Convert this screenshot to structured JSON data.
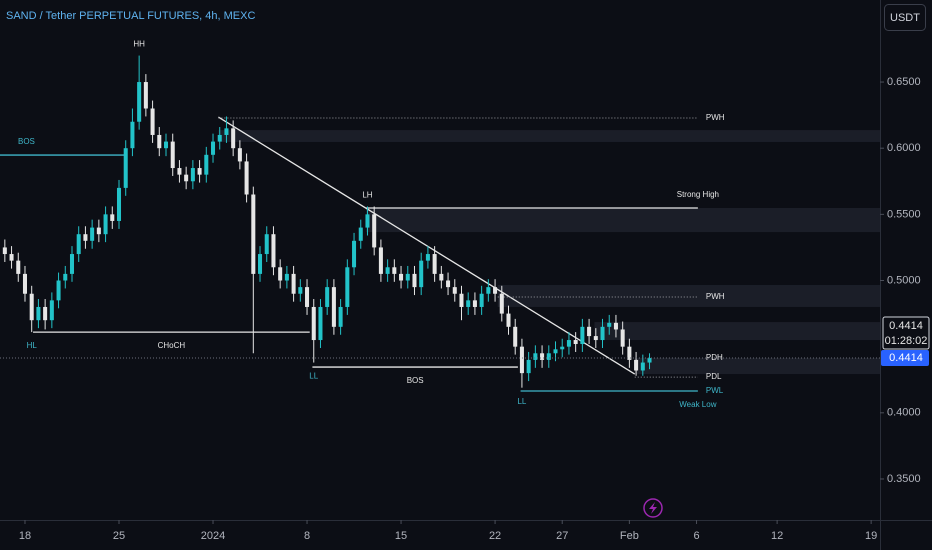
{
  "chart_data": {
    "type": "candlestick",
    "title": "SAND / Tether PERPETUAL FUTURES, 4h, MEXC",
    "currency": "USDT",
    "countdown": "01:28:02",
    "up_color": "#22c3c9",
    "down_color": "#e6e6e6",
    "x": [
      -1.5,
      -1,
      -0.5,
      0,
      0.5,
      1,
      1.5,
      2,
      2.5,
      3,
      3.5,
      4,
      4.5,
      5,
      5.5,
      6,
      6.5,
      7,
      7.5,
      8,
      8.5,
      9,
      9.5,
      10,
      10.5,
      11,
      11.5,
      12,
      12.5,
      13,
      13.5,
      14,
      14.5,
      15,
      15.5,
      16,
      16.5,
      17,
      17.5,
      18,
      18.5,
      19,
      19.5,
      20,
      20.5,
      21,
      21.5,
      22,
      22.5,
      23,
      23.5,
      24,
      24.5,
      25,
      25.5,
      26,
      26.5,
      27,
      27.5,
      28,
      28.5,
      29,
      29.5,
      30,
      30.5,
      31,
      31.5,
      32,
      32.5,
      33,
      33.5,
      34,
      34.5,
      35,
      35.5,
      36,
      36.5,
      37,
      37.5,
      38,
      38.5,
      39,
      39.5,
      40,
      40.5,
      41,
      41.5,
      42,
      42.5,
      43,
      43.5,
      44,
      44.5,
      45,
      45.5,
      46,
      46.5
    ],
    "open": [
      0.525,
      0.52,
      0.515,
      0.505,
      0.49,
      0.47,
      0.48,
      0.47,
      0.485,
      0.5,
      0.505,
      0.52,
      0.535,
      0.53,
      0.54,
      0.535,
      0.55,
      0.545,
      0.57,
      0.6,
      0.62,
      0.65,
      0.63,
      0.61,
      0.6,
      0.605,
      0.585,
      0.58,
      0.575,
      0.585,
      0.58,
      0.595,
      0.605,
      0.61,
      0.615,
      0.6,
      0.59,
      0.565,
      0.505,
      0.52,
      0.535,
      0.51,
      0.5,
      0.505,
      0.49,
      0.495,
      0.48,
      0.455,
      0.48,
      0.495,
      0.465,
      0.48,
      0.51,
      0.53,
      0.54,
      0.55,
      0.525,
      0.505,
      0.51,
      0.505,
      0.5,
      0.505,
      0.495,
      0.515,
      0.52,
      0.505,
      0.5,
      0.495,
      0.49,
      0.48,
      0.485,
      0.48,
      0.49,
      0.495,
      0.49,
      0.475,
      0.465,
      0.45,
      0.43,
      0.44,
      0.445,
      0.44,
      0.445,
      0.448,
      0.45,
      0.455,
      0.452,
      0.465,
      0.458,
      0.455,
      0.465,
      0.468,
      0.463,
      0.45,
      0.44,
      0.432,
      0.438
    ],
    "high": [
      0.531,
      0.526,
      0.521,
      0.511,
      0.496,
      0.486,
      0.486,
      0.491,
      0.506,
      0.511,
      0.526,
      0.541,
      0.541,
      0.546,
      0.546,
      0.556,
      0.556,
      0.576,
      0.606,
      0.63,
      0.67,
      0.656,
      0.636,
      0.616,
      0.611,
      0.611,
      0.591,
      0.586,
      0.591,
      0.591,
      0.601,
      0.611,
      0.616,
      0.624,
      0.621,
      0.606,
      0.596,
      0.571,
      0.526,
      0.541,
      0.541,
      0.516,
      0.511,
      0.511,
      0.501,
      0.501,
      0.486,
      0.486,
      0.501,
      0.501,
      0.486,
      0.516,
      0.536,
      0.546,
      0.556,
      0.556,
      0.531,
      0.516,
      0.516,
      0.511,
      0.511,
      0.511,
      0.521,
      0.526,
      0.526,
      0.511,
      0.506,
      0.501,
      0.496,
      0.491,
      0.491,
      0.496,
      0.501,
      0.501,
      0.496,
      0.481,
      0.471,
      0.456,
      0.446,
      0.451,
      0.451,
      0.451,
      0.454,
      0.456,
      0.461,
      0.461,
      0.471,
      0.471,
      0.464,
      0.471,
      0.474,
      0.474,
      0.469,
      0.456,
      0.446,
      0.444,
      0.445
    ],
    "low": [
      0.514,
      0.509,
      0.499,
      0.484,
      0.461,
      0.464,
      0.463,
      0.464,
      0.479,
      0.494,
      0.499,
      0.514,
      0.524,
      0.524,
      0.529,
      0.529,
      0.539,
      0.539,
      0.564,
      0.594,
      0.614,
      0.624,
      0.604,
      0.594,
      0.594,
      0.579,
      0.574,
      0.569,
      0.569,
      0.574,
      0.574,
      0.589,
      0.599,
      0.604,
      0.594,
      0.584,
      0.559,
      0.445,
      0.499,
      0.514,
      0.504,
      0.494,
      0.494,
      0.484,
      0.484,
      0.474,
      0.438,
      0.449,
      0.474,
      0.459,
      0.459,
      0.474,
      0.504,
      0.524,
      0.534,
      0.519,
      0.499,
      0.499,
      0.499,
      0.494,
      0.494,
      0.489,
      0.489,
      0.509,
      0.499,
      0.494,
      0.489,
      0.484,
      0.47,
      0.474,
      0.474,
      0.474,
      0.484,
      0.484,
      0.469,
      0.459,
      0.444,
      0.419,
      0.424,
      0.434,
      0.434,
      0.434,
      0.439,
      0.442,
      0.444,
      0.446,
      0.446,
      0.452,
      0.449,
      0.449,
      0.459,
      0.457,
      0.444,
      0.434,
      0.428,
      0.428,
      0.433
    ],
    "close": [
      0.52,
      0.515,
      0.505,
      0.49,
      0.47,
      0.48,
      0.47,
      0.485,
      0.5,
      0.505,
      0.52,
      0.535,
      0.53,
      0.54,
      0.535,
      0.55,
      0.545,
      0.57,
      0.6,
      0.62,
      0.65,
      0.63,
      0.61,
      0.6,
      0.605,
      0.585,
      0.58,
      0.575,
      0.585,
      0.58,
      0.595,
      0.605,
      0.61,
      0.615,
      0.6,
      0.59,
      0.565,
      0.505,
      0.52,
      0.535,
      0.51,
      0.5,
      0.505,
      0.49,
      0.495,
      0.48,
      0.455,
      0.48,
      0.495,
      0.465,
      0.48,
      0.51,
      0.53,
      0.54,
      0.55,
      0.525,
      0.505,
      0.51,
      0.505,
      0.5,
      0.505,
      0.495,
      0.515,
      0.52,
      0.505,
      0.5,
      0.495,
      0.49,
      0.48,
      0.485,
      0.48,
      0.49,
      0.495,
      0.49,
      0.475,
      0.465,
      0.45,
      0.43,
      0.44,
      0.445,
      0.44,
      0.445,
      0.448,
      0.45,
      0.455,
      0.452,
      0.465,
      0.458,
      0.455,
      0.465,
      0.468,
      0.463,
      0.45,
      0.44,
      0.432,
      0.438,
      0.4414
    ],
    "xlim": [
      -1.86,
      63.66
    ],
    "ylim": [
      0.319,
      0.712
    ],
    "xticks": [
      {
        "value": 0,
        "label": "18"
      },
      {
        "value": 7,
        "label": "25"
      },
      {
        "value": 14,
        "label": "2024"
      },
      {
        "value": 21,
        "label": "8"
      },
      {
        "value": 28,
        "label": "15"
      },
      {
        "value": 35,
        "label": "22"
      },
      {
        "value": 40,
        "label": "27"
      },
      {
        "value": 45,
        "label": "Feb"
      },
      {
        "value": 50,
        "label": "6"
      },
      {
        "value": 56,
        "label": "12"
      },
      {
        "value": 63,
        "label": "19"
      }
    ],
    "yticks": [
      {
        "value": 0.65,
        "label": "0.6500"
      },
      {
        "value": 0.6,
        "label": "0.6000"
      },
      {
        "value": 0.55,
        "label": "0.5500"
      },
      {
        "value": 0.5,
        "label": "0.5000"
      },
      {
        "value": 0.4,
        "label": "0.4000"
      },
      {
        "value": 0.35,
        "label": "0.3500"
      }
    ],
    "zones": [
      {
        "y": [
          0.6047,
          0.6137
        ],
        "x": 14.4
      },
      {
        "y": [
          0.5366,
          0.5548
        ],
        "x": 25.4
      },
      {
        "y": [
          0.48,
          0.4966
        ],
        "x": 35.2
      },
      {
        "y": [
          0.455,
          0.4686
        ],
        "x": 42.4
      },
      {
        "y": [
          0.4293,
          0.4414
        ],
        "x": 45.4
      }
    ],
    "lines": [
      {
        "x": [
          -1.86,
          7.45
        ],
        "y": 0.5948,
        "color": "#3fb6c9",
        "style": "solid",
        "labels": [
          {
            "text": "BOS",
            "at": "start",
            "side": "above"
          }
        ]
      },
      {
        "x": [
          0.6,
          21.2
        ],
        "y": 0.461,
        "color": "#e6e6e6",
        "style": "solid",
        "labels": [
          {
            "text": "CHoCH",
            "at": "mid",
            "side": "below"
          }
        ]
      },
      {
        "x": [
          14.4,
          45.4
        ],
        "y": [
          0.6235,
          0.4293
        ],
        "color": "#e6e6e6",
        "style": "solid",
        "labels": []
      },
      {
        "x": [
          25.4,
          50.1
        ],
        "y": 0.5548,
        "color": "#e6e6e6",
        "style": "solid",
        "labels": [
          {
            "text": "Strong High",
            "at": "end",
            "side": "above"
          }
        ]
      },
      {
        "x": [
          21.4,
          36.7
        ],
        "y": 0.4346,
        "color": "#e6e6e6",
        "style": "solid",
        "labels": [
          {
            "text": "BOS",
            "at": "mid",
            "side": "below"
          }
        ]
      },
      {
        "x": [
          14.4,
          50.1
        ],
        "y": 0.6228,
        "color": "#9a9ca3",
        "style": "dotted",
        "labels": [
          {
            "text": "PWH",
            "at": "end",
            "side": "right"
          }
        ]
      },
      {
        "x": [
          35.2,
          50.1
        ],
        "y": 0.4875,
        "color": "#9a9ca3",
        "style": "dotted",
        "labels": [
          {
            "text": "PWH",
            "at": "end",
            "side": "right"
          }
        ]
      },
      {
        "x": [
          37,
          50.1
        ],
        "y": 0.4414,
        "color": "#9a9ca3",
        "style": "dotted",
        "labels": [
          {
            "text": "PDH",
            "at": "end",
            "side": "right"
          }
        ]
      },
      {
        "x": [
          45.4,
          50.1
        ],
        "y": 0.427,
        "color": "#9a9ca3",
        "style": "dotted",
        "labels": [
          {
            "text": "PDL",
            "at": "end",
            "side": "right"
          }
        ]
      },
      {
        "x": [
          36.9,
          50.1
        ],
        "y": 0.4165,
        "color": "#3fb6c9",
        "style": "solid",
        "labels": [
          {
            "text": "PWL",
            "at": "end",
            "side": "right"
          },
          {
            "text": "Weak Low",
            "at": "end",
            "side": "below"
          }
        ]
      }
    ],
    "points": [
      {
        "text": "HH",
        "x": 8.5,
        "y": 0.67,
        "side": "above",
        "color": "#e6e6e6"
      },
      {
        "text": "HL",
        "x": 0.5,
        "y": 0.461,
        "side": "below",
        "color": "#3fb6c9"
      },
      {
        "text": "LH",
        "x": 25.5,
        "y": 0.556,
        "side": "above",
        "color": "#e6e6e6"
      },
      {
        "text": "LL",
        "x": 21.5,
        "y": 0.438,
        "side": "below",
        "color": "#3fb6c9"
      },
      {
        "text": "LL",
        "x": 37,
        "y": 0.419,
        "side": "below",
        "color": "#3fb6c9"
      }
    ]
  }
}
